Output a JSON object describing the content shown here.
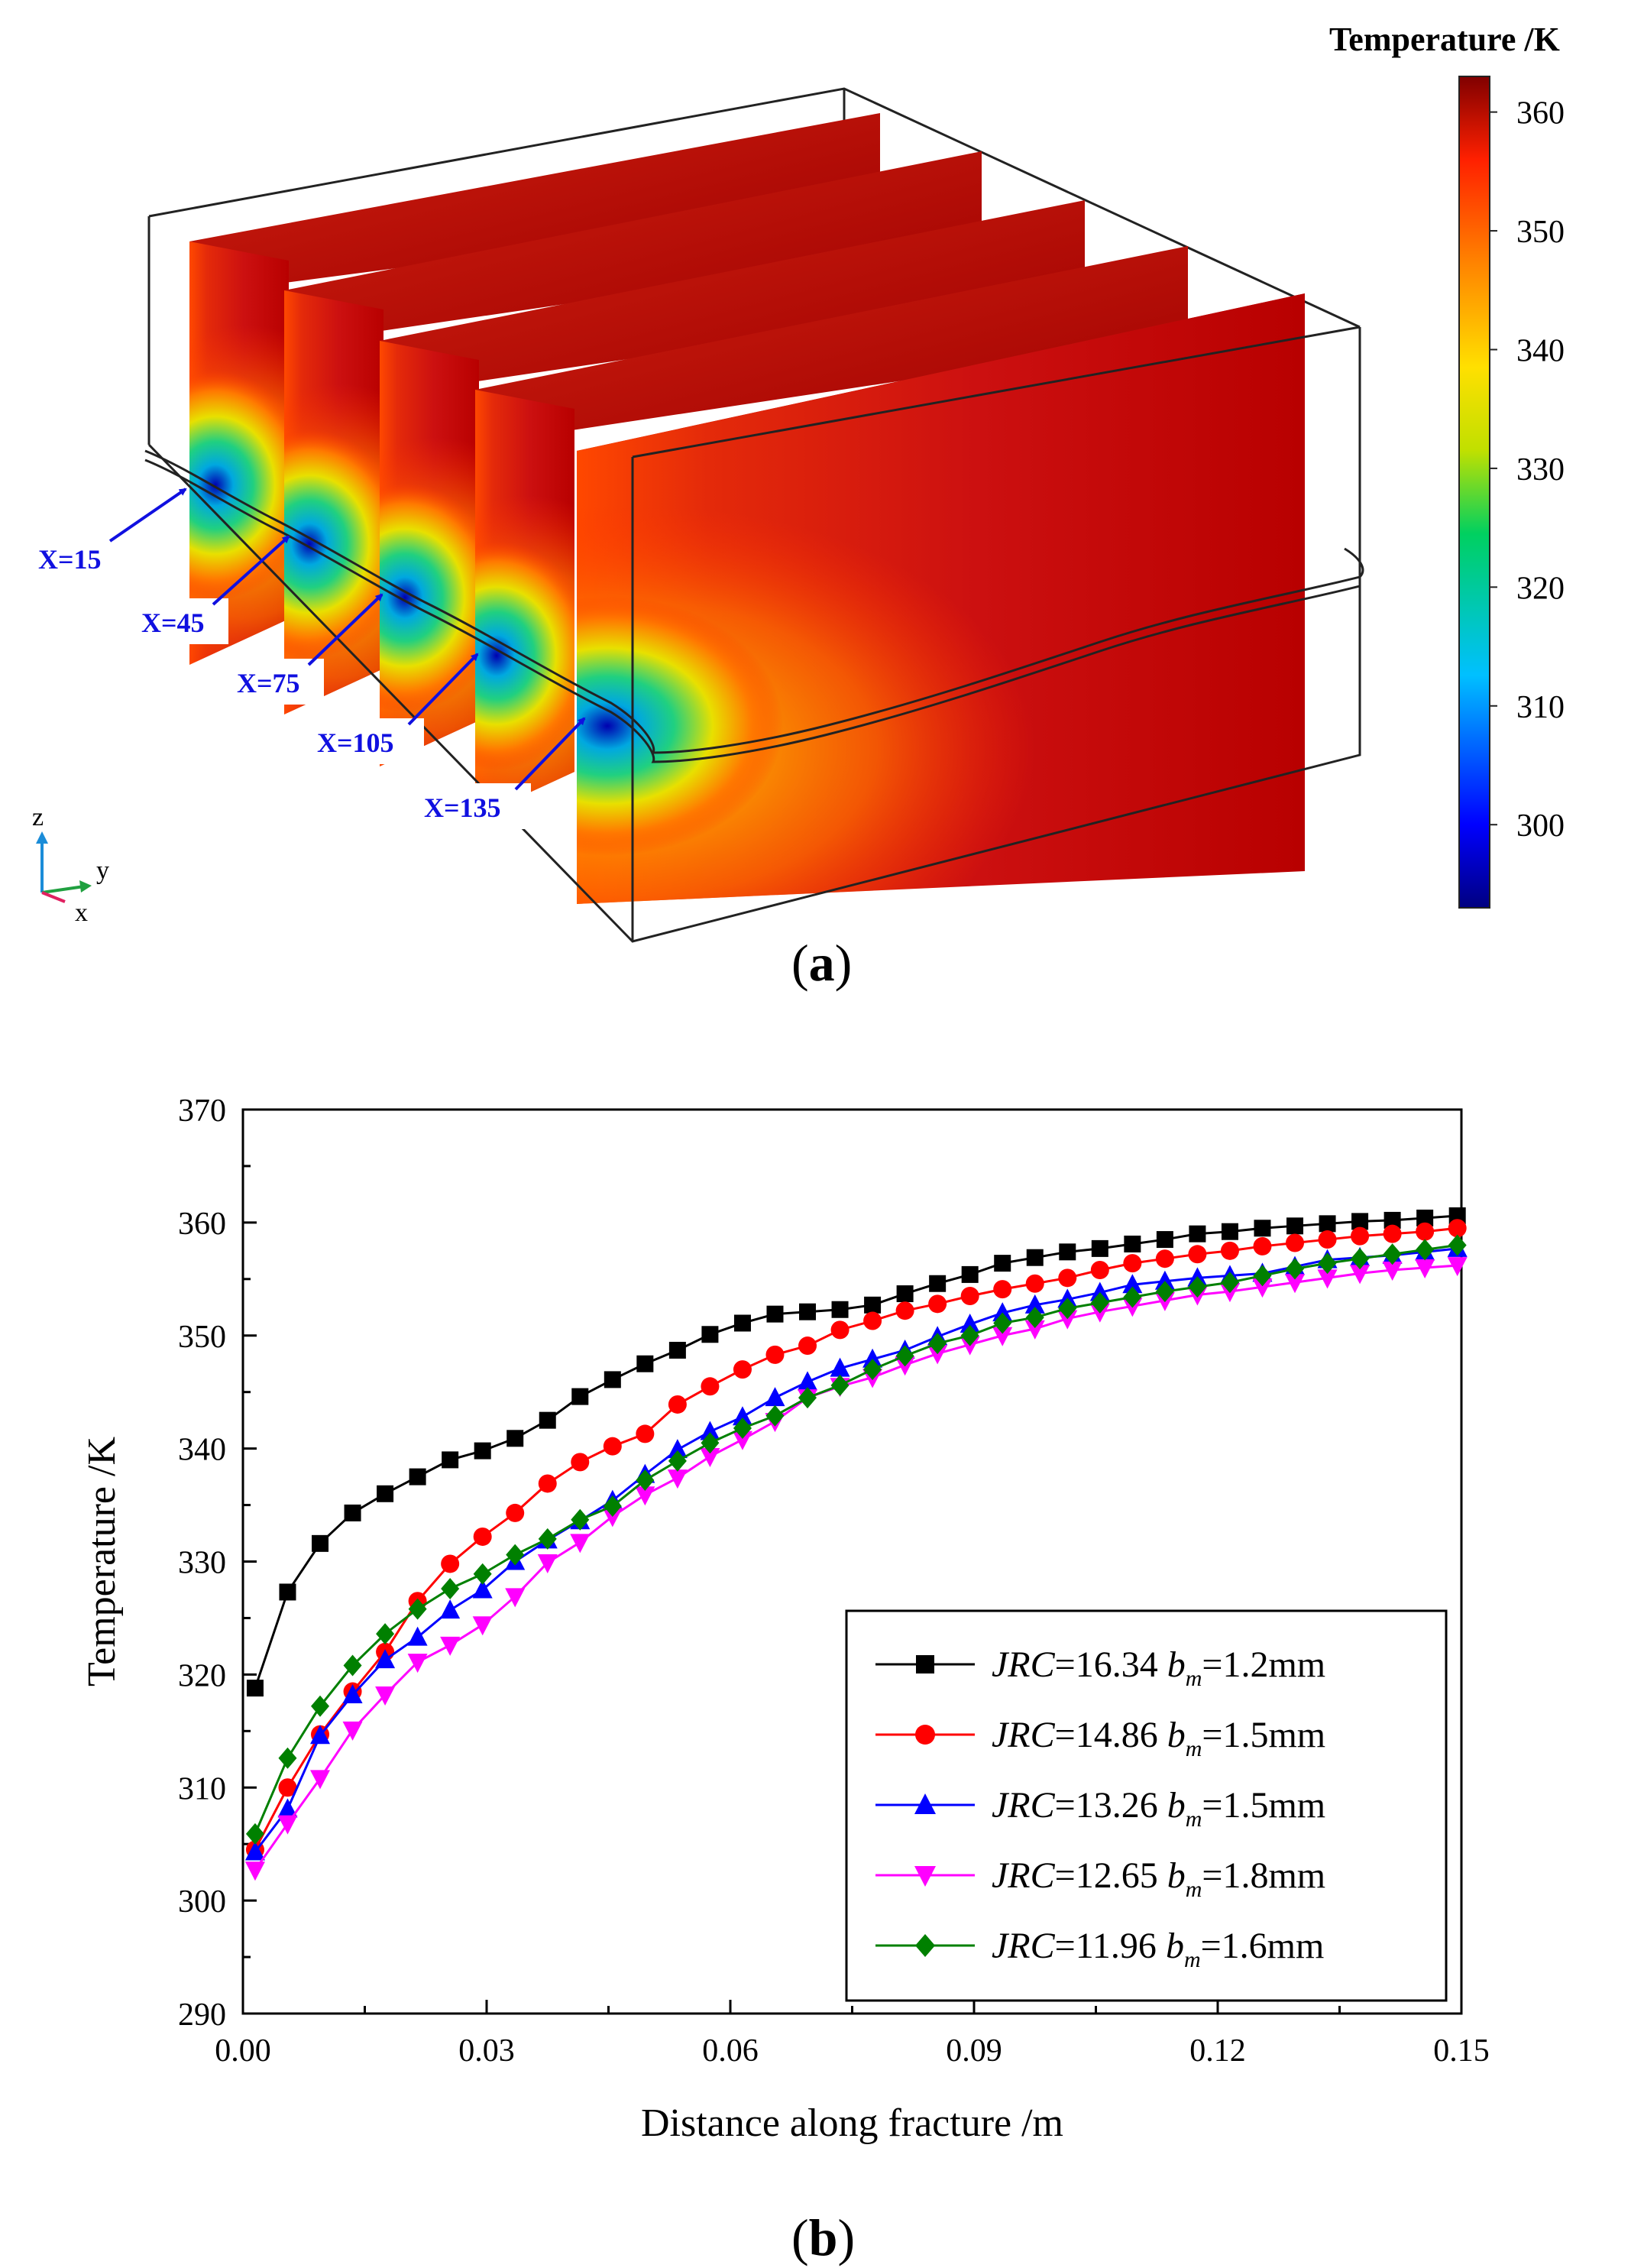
{
  "panel_a": {
    "caption_open": "(",
    "caption_letter": "a",
    "caption_close": ")",
    "colorbar": {
      "title": "Temperature /K",
      "ticks": [
        "360",
        "350",
        "340",
        "330",
        "320",
        "310",
        "300"
      ],
      "range": [
        293,
        363
      ]
    },
    "slice_labels": [
      "X=15",
      "X=45",
      "X=75",
      "X=105",
      "X=135"
    ],
    "axes_triad": {
      "z": "z",
      "y": "y",
      "x": "x"
    },
    "colors": {
      "hot": "#b40000",
      "mid": "#e8d000",
      "cool": "#00a8d8",
      "label": "#1010e0"
    }
  },
  "panel_b": {
    "caption_open": "(",
    "caption_letter": "b",
    "caption_close": ")"
  },
  "chart_data": {
    "type": "line",
    "title": "",
    "xlabel": "Distance along fracture /m",
    "ylabel": "Temperature /K",
    "xlim": [
      0,
      0.15
    ],
    "ylim": [
      290,
      370
    ],
    "xticks": [
      "0.00",
      "0.03",
      "0.06",
      "0.09",
      "0.12",
      "0.15"
    ],
    "yticks": [
      "290",
      "300",
      "310",
      "320",
      "330",
      "340",
      "350",
      "360",
      "370"
    ],
    "legend_position": "bottom-right",
    "series": [
      {
        "name": "JRC=16.34 b_m=1.2mm",
        "label_italic": "JRC",
        "label_val": "=16.34 ",
        "label_b": "b",
        "label_sub": "m",
        "label_tail": "=1.2mm",
        "color": "#000000",
        "marker": "square",
        "x": [
          0.0015,
          0.0055,
          0.0095,
          0.0135,
          0.0175,
          0.0215,
          0.0255,
          0.0295,
          0.0335,
          0.0375,
          0.0415,
          0.0455,
          0.0495,
          0.0535,
          0.0575,
          0.0615,
          0.0655,
          0.0695,
          0.0735,
          0.0775,
          0.0815,
          0.0855,
          0.0895,
          0.0935,
          0.0975,
          0.1015,
          0.1055,
          0.1095,
          0.1135,
          0.1175,
          0.1215,
          0.1255,
          0.1295,
          0.1335,
          0.1375,
          0.1415,
          0.1455,
          0.1495
        ],
        "y": [
          318.8,
          327.3,
          331.6,
          334.3,
          336.0,
          337.5,
          339.0,
          339.8,
          340.9,
          342.5,
          344.6,
          346.1,
          347.5,
          348.7,
          350.1,
          351.1,
          351.9,
          352.1,
          352.3,
          352.7,
          353.7,
          354.6,
          355.4,
          356.4,
          356.9,
          357.4,
          357.7,
          358.1,
          358.5,
          359.0,
          359.2,
          359.5,
          359.7,
          359.9,
          360.1,
          360.2,
          360.4,
          360.6
        ]
      },
      {
        "name": "JRC=14.86 b_m=1.5mm",
        "label_italic": "JRC",
        "label_val": "=14.86 ",
        "label_b": "b",
        "label_sub": "m",
        "label_tail": "=1.5mm",
        "color": "#ff0000",
        "marker": "circle",
        "x": [
          0.0015,
          0.0055,
          0.0095,
          0.0135,
          0.0175,
          0.0215,
          0.0255,
          0.0295,
          0.0335,
          0.0375,
          0.0415,
          0.0455,
          0.0495,
          0.0535,
          0.0575,
          0.0615,
          0.0655,
          0.0695,
          0.0735,
          0.0775,
          0.0815,
          0.0855,
          0.0895,
          0.0935,
          0.0975,
          0.1015,
          0.1055,
          0.1095,
          0.1135,
          0.1175,
          0.1215,
          0.1255,
          0.1295,
          0.1335,
          0.1375,
          0.1415,
          0.1455,
          0.1495
        ],
        "y": [
          304.5,
          310.0,
          314.7,
          318.5,
          322.0,
          326.5,
          329.8,
          332.2,
          334.3,
          336.9,
          338.8,
          340.2,
          341.3,
          343.9,
          345.5,
          347.0,
          348.3,
          349.1,
          350.5,
          351.3,
          352.2,
          352.8,
          353.5,
          354.1,
          354.6,
          355.1,
          355.8,
          356.4,
          356.8,
          357.2,
          357.5,
          357.9,
          358.2,
          358.5,
          358.8,
          359.0,
          359.2,
          359.5
        ]
      },
      {
        "name": "JRC=13.26 b_m=1.5mm",
        "label_italic": "JRC",
        "label_val": "=13.26 ",
        "label_b": "b",
        "label_sub": "m",
        "label_tail": "=1.5mm",
        "color": "#0000ff",
        "marker": "triangle-up",
        "x": [
          0.0015,
          0.0055,
          0.0095,
          0.0135,
          0.0175,
          0.0215,
          0.0255,
          0.0295,
          0.0335,
          0.0375,
          0.0415,
          0.0455,
          0.0495,
          0.0535,
          0.0575,
          0.0615,
          0.0655,
          0.0695,
          0.0735,
          0.0775,
          0.0815,
          0.0855,
          0.0895,
          0.0935,
          0.0975,
          0.1015,
          0.1055,
          0.1095,
          0.1135,
          0.1175,
          0.1215,
          0.1255,
          0.1295,
          0.1335,
          0.1375,
          0.1415,
          0.1455,
          0.1495
        ],
        "y": [
          304.3,
          308.1,
          314.6,
          318.2,
          321.3,
          323.3,
          325.7,
          327.5,
          330.0,
          331.9,
          333.6,
          335.4,
          337.7,
          339.9,
          341.5,
          342.8,
          344.5,
          345.9,
          347.1,
          347.9,
          348.7,
          349.9,
          351.0,
          352.0,
          352.7,
          353.2,
          353.8,
          354.5,
          354.8,
          355.1,
          355.3,
          355.5,
          356.1,
          356.7,
          356.9,
          357.1,
          357.4,
          357.7
        ]
      },
      {
        "name": "JRC=12.65 b_m=1.8mm",
        "label_italic": "JRC",
        "label_val": "=12.65 ",
        "label_b": "b",
        "label_sub": "m",
        "label_tail": "=1.8mm",
        "color": "#ff00ff",
        "marker": "triangle-down",
        "x": [
          0.0015,
          0.0055,
          0.0095,
          0.0135,
          0.0175,
          0.0215,
          0.0255,
          0.0295,
          0.0335,
          0.0375,
          0.0415,
          0.0455,
          0.0495,
          0.0535,
          0.0575,
          0.0615,
          0.0655,
          0.0695,
          0.0735,
          0.0775,
          0.0815,
          0.0855,
          0.0895,
          0.0935,
          0.0975,
          0.1015,
          0.1055,
          0.1095,
          0.1135,
          0.1175,
          0.1215,
          0.1255,
          0.1295,
          0.1335,
          0.1375,
          0.1415,
          0.1455,
          0.1495
        ],
        "y": [
          302.7,
          306.8,
          310.8,
          315.1,
          318.2,
          321.1,
          322.6,
          324.4,
          326.9,
          329.9,
          331.7,
          334.0,
          335.9,
          337.4,
          339.3,
          340.8,
          342.4,
          344.5,
          345.5,
          346.3,
          347.4,
          348.4,
          349.2,
          350.0,
          350.6,
          351.5,
          352.1,
          352.6,
          353.1,
          353.6,
          353.9,
          354.3,
          354.7,
          355.1,
          355.5,
          355.8,
          356.0,
          356.2
        ]
      },
      {
        "name": "JRC=11.96 b_m=1.6mm",
        "label_italic": "JRC",
        "label_val": "=11.96 ",
        "label_b": "b",
        "label_sub": "m",
        "label_tail": "=1.6mm",
        "color": "#008000",
        "marker": "diamond",
        "x": [
          0.0015,
          0.0055,
          0.0095,
          0.0135,
          0.0175,
          0.0215,
          0.0255,
          0.0295,
          0.0335,
          0.0375,
          0.0415,
          0.0455,
          0.0495,
          0.0535,
          0.0575,
          0.0615,
          0.0655,
          0.0695,
          0.0735,
          0.0775,
          0.0815,
          0.0855,
          0.0895,
          0.0935,
          0.0975,
          0.1015,
          0.1055,
          0.1095,
          0.1135,
          0.1175,
          0.1215,
          0.1255,
          0.1295,
          0.1335,
          0.1375,
          0.1415,
          0.1455,
          0.1495
        ],
        "y": [
          305.9,
          312.6,
          317.2,
          320.8,
          323.6,
          325.8,
          327.6,
          328.9,
          330.6,
          332.0,
          333.7,
          334.9,
          337.2,
          338.9,
          340.5,
          341.8,
          342.9,
          344.5,
          345.6,
          347.0,
          348.2,
          349.3,
          350.0,
          351.1,
          351.6,
          352.4,
          352.9,
          353.4,
          353.9,
          354.3,
          354.7,
          355.3,
          355.9,
          356.4,
          356.8,
          357.2,
          357.6,
          358.0
        ]
      }
    ]
  }
}
